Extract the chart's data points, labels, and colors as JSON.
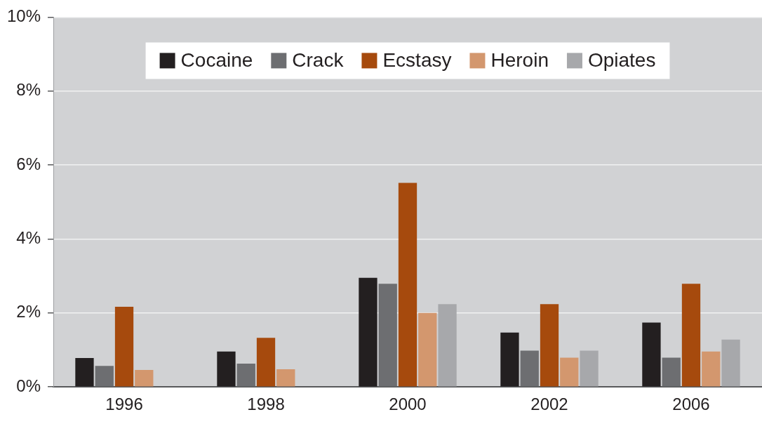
{
  "chart_data": {
    "type": "bar",
    "categories": [
      "1996",
      "1998",
      "2000",
      "2002",
      "2006"
    ],
    "series": [
      {
        "name": "Cocaine",
        "color": "#231f20",
        "values": [
          0.78,
          0.96,
          2.95,
          1.47,
          1.74
        ]
      },
      {
        "name": "Crack",
        "color": "#6d6e71",
        "values": [
          0.57,
          0.63,
          2.79,
          0.98,
          0.79
        ]
      },
      {
        "name": "Ecstasy",
        "color": "#a64a0d",
        "values": [
          2.17,
          1.33,
          5.52,
          2.24,
          2.79
        ]
      },
      {
        "name": "Heroin",
        "color": "#d3976e",
        "values": [
          0.46,
          0.48,
          2.0,
          0.79,
          0.96
        ]
      },
      {
        "name": "Opiates",
        "color": "#a7a8ab",
        "values": [
          null,
          null,
          2.24,
          0.98,
          1.28
        ]
      }
    ],
    "ylim": [
      0,
      10
    ],
    "yticks": [
      {
        "value": 0,
        "label": "0%"
      },
      {
        "value": 2,
        "label": "2%"
      },
      {
        "value": 4,
        "label": "4%"
      },
      {
        "value": 6,
        "label": "6%"
      },
      {
        "value": 8,
        "label": "8%"
      },
      {
        "value": 10,
        "label": "10%"
      }
    ],
    "grid": "y",
    "legend": "top"
  }
}
